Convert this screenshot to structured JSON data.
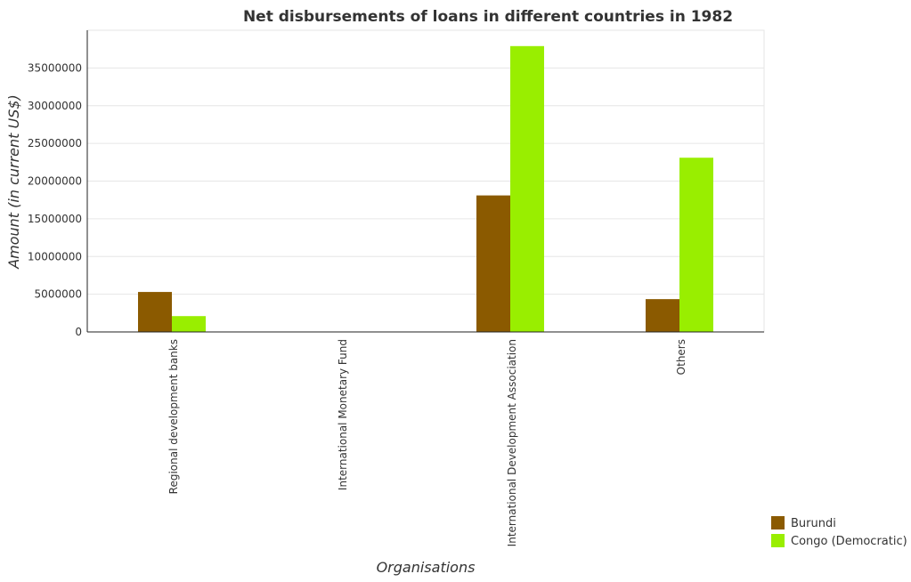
{
  "chart_data": {
    "type": "bar",
    "title": "Net disbursements of loans in different countries in 1982",
    "xlabel": "Organisations",
    "ylabel": "Amount (in current US$)",
    "categories": [
      "Regional development banks",
      "International Monetary Fund",
      "International Development Association",
      "Others"
    ],
    "series": [
      {
        "name": "Burundi",
        "color": "#8b5a00",
        "values": [
          5300000,
          0,
          18100000,
          4350000
        ]
      },
      {
        "name": "Congo (Democratic)",
        "color": "#99ee00",
        "values": [
          2100000,
          0,
          37900000,
          23100000
        ]
      }
    ],
    "ylim": [
      0,
      40000000
    ],
    "yticks": [
      0,
      5000000,
      10000000,
      15000000,
      20000000,
      25000000,
      30000000,
      35000000
    ],
    "ytick_labels": [
      "0",
      "5000000",
      "10000000",
      "15000000",
      "20000000",
      "25000000",
      "30000000",
      "35000000"
    ],
    "grid": true,
    "legend_position": "bottom-right"
  }
}
